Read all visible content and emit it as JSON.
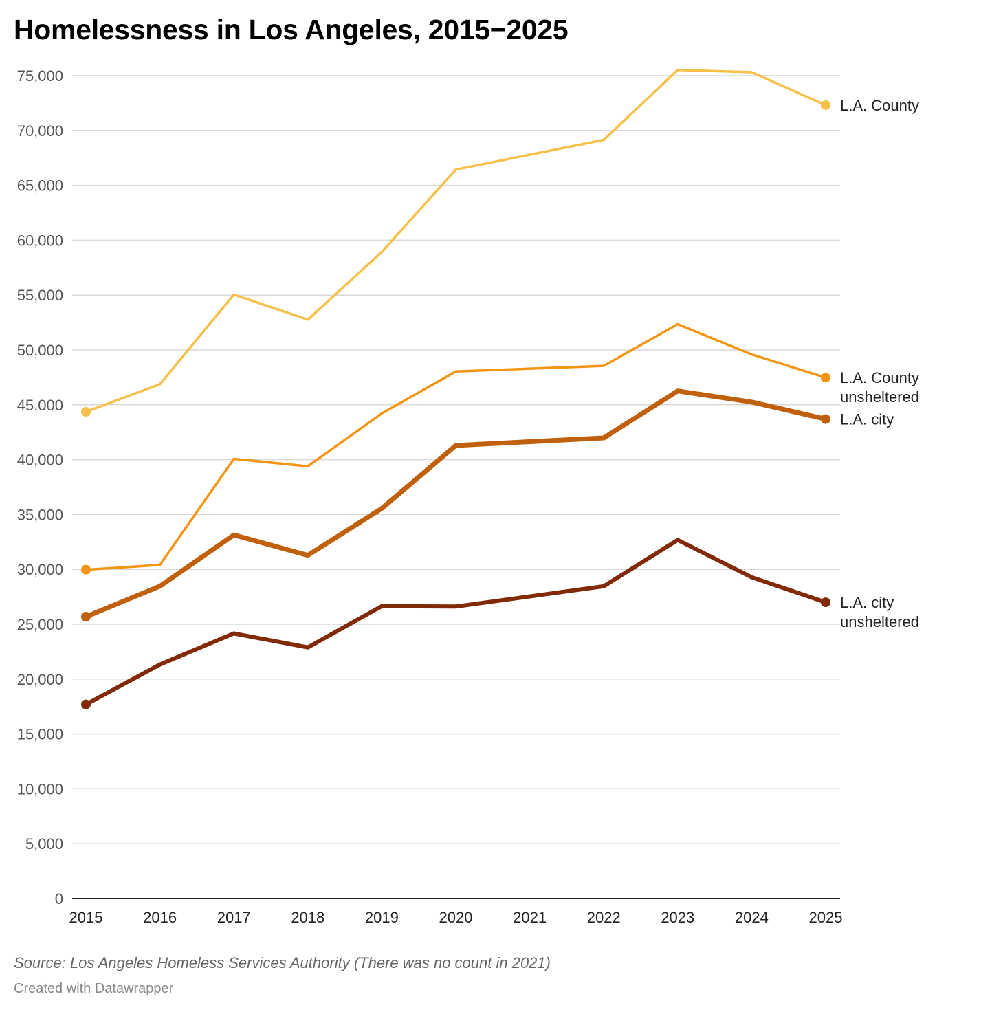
{
  "chart_data": {
    "type": "line",
    "title": "Homelessness in Los Angeles, 2015−2025",
    "x": [
      2015,
      2016,
      2017,
      2018,
      2019,
      2020,
      2021,
      2022,
      2023,
      2024,
      2025
    ],
    "x_tick_labels": [
      "2015",
      "2016",
      "2017",
      "2018",
      "2019",
      "2020",
      "2021",
      "2022",
      "2023",
      "2024",
      "2025"
    ],
    "y_ticks": [
      0,
      5000,
      10000,
      15000,
      20000,
      25000,
      30000,
      35000,
      40000,
      45000,
      50000,
      55000,
      60000,
      65000,
      70000,
      75000
    ],
    "y_tick_labels": [
      "0",
      "5,000",
      "10,000",
      "15,000",
      "20,000",
      "25,000",
      "30,000",
      "35,000",
      "40,000",
      "45,000",
      "50,000",
      "55,000",
      "60,000",
      "65,000",
      "70,000",
      "75,000"
    ],
    "ylim": [
      0,
      75000
    ],
    "xlabel": "",
    "ylabel": "",
    "grid": true,
    "series": [
      {
        "name": "L.A. County",
        "label_lines": [
          "L.A. County"
        ],
        "color": "#f7c04a",
        "x": [
          2015,
          2016,
          2017,
          2018,
          2019,
          2020,
          2022,
          2023,
          2024,
          2025
        ],
        "values": [
          44359,
          46874,
          55048,
          52765,
          58936,
          66436,
          69144,
          75518,
          75312,
          72308
        ]
      },
      {
        "name": "L.A. County unsheltered",
        "label_lines": [
          "L.A. County",
          "unsheltered"
        ],
        "color": "#f39412",
        "x": [
          2015,
          2016,
          2017,
          2018,
          2019,
          2020,
          2022,
          2023,
          2024,
          2025
        ],
        "values": [
          29970,
          30410,
          40070,
          39400,
          44210,
          48040,
          48550,
          52350,
          49590,
          47480
        ]
      },
      {
        "name": "L.A. city",
        "label_lines": [
          "L.A. city"
        ],
        "color": "#c0600c",
        "x": [
          2015,
          2016,
          2017,
          2018,
          2019,
          2020,
          2022,
          2023,
          2024,
          2025
        ],
        "values": [
          25686,
          28464,
          33139,
          31285,
          35550,
          41290,
          41980,
          46260,
          45252,
          43699
        ]
      },
      {
        "name": "L.A. city unsheltered",
        "label_lines": [
          "L.A. city",
          "unsheltered"
        ],
        "color": "#822a08",
        "x": [
          2015,
          2016,
          2017,
          2018,
          2019,
          2020,
          2022,
          2023,
          2024,
          2025
        ],
        "values": [
          17690,
          21330,
          24160,
          22890,
          26650,
          26610,
          28460,
          32680,
          29280,
          27000
        ]
      }
    ],
    "source": "Source: Los Angeles Homeless Services Authority (There was no count in 2021)",
    "credit": "Created with Datawrapper"
  }
}
